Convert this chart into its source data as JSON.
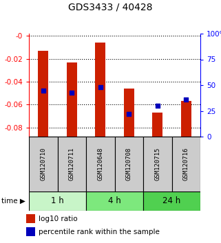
{
  "title": "GDS3433 / 40428",
  "samples": [
    "GSM120710",
    "GSM120711",
    "GSM120648",
    "GSM120708",
    "GSM120715",
    "GSM120716"
  ],
  "log10_ratio_top": [
    -0.013,
    -0.023,
    -0.006,
    -0.046,
    -0.067,
    -0.057
  ],
  "percentile_rank": [
    45,
    43,
    48,
    22,
    30,
    36
  ],
  "time_groups": [
    {
      "label": "1 h",
      "start": 0,
      "end": 1,
      "color": "#c8f5c8"
    },
    {
      "label": "4 h",
      "start": 2,
      "end": 3,
      "color": "#7de87d"
    },
    {
      "label": "24 h",
      "start": 4,
      "end": 5,
      "color": "#50d050"
    }
  ],
  "ylim_left": [
    -0.088,
    0.002
  ],
  "ylim_right": [
    0,
    100
  ],
  "yticks_left": [
    0.0,
    -0.02,
    -0.04,
    -0.06,
    -0.08
  ],
  "yticks_right": [
    0,
    25,
    50,
    75,
    100
  ],
  "bar_bottom": -0.088,
  "bar_color": "#cc2000",
  "dot_color": "#0000bb",
  "bar_width": 0.35,
  "background_label": "#cccccc",
  "legend_items": [
    {
      "color": "#cc2000",
      "label": "log10 ratio"
    },
    {
      "color": "#0000bb",
      "label": "percentile rank within the sample"
    }
  ]
}
